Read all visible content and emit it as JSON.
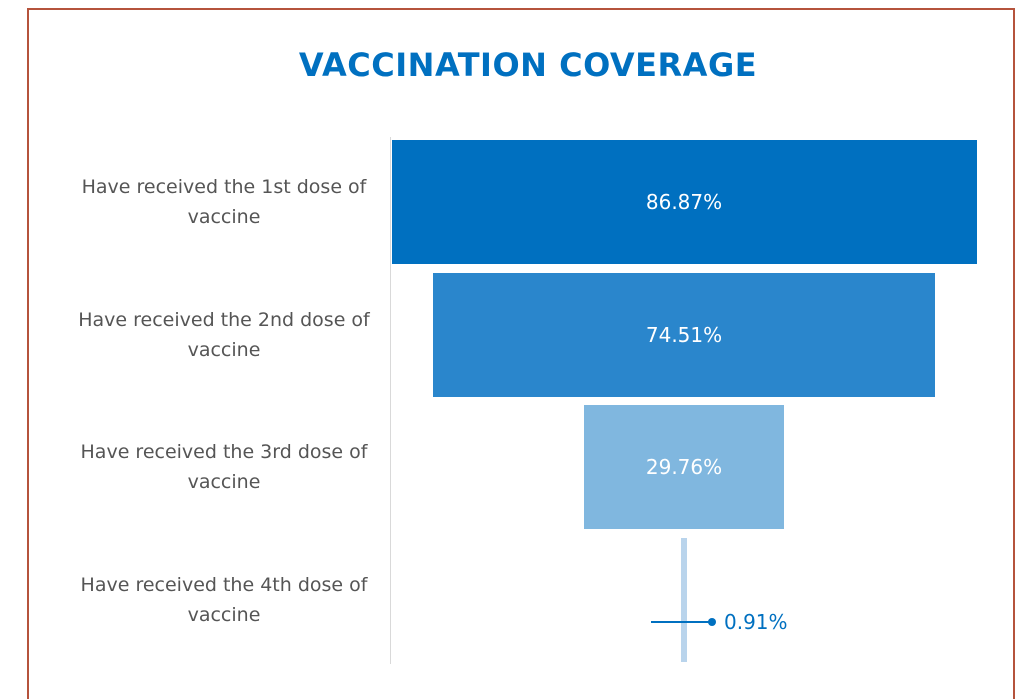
{
  "chart_data": {
    "type": "funnel",
    "title": "VACCINATION COVERAGE",
    "categories": [
      "Have received the 1st dose of vaccine",
      "Have received the 2nd dose of vaccine",
      "Have received the 3rd dose of vaccine",
      "Have received the 4th dose of vaccine"
    ],
    "values": [
      86.87,
      74.51,
      29.76,
      0.91
    ],
    "value_labels": [
      "86.87%",
      "74.51%",
      "29.76%",
      "0.91%"
    ],
    "colors": [
      "#0070c0",
      "#2a86cc",
      "#80b7df",
      "#b9d4ec"
    ]
  }
}
